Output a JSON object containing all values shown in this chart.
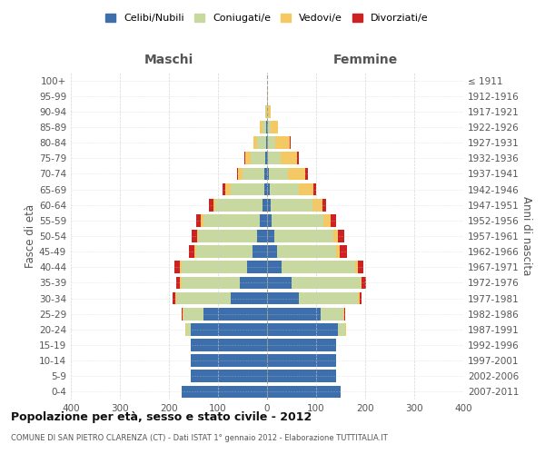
{
  "age_groups": [
    "0-4",
    "5-9",
    "10-14",
    "15-19",
    "20-24",
    "25-29",
    "30-34",
    "35-39",
    "40-44",
    "45-49",
    "50-54",
    "55-59",
    "60-64",
    "65-69",
    "70-74",
    "75-79",
    "80-84",
    "85-89",
    "90-94",
    "95-99",
    "100+"
  ],
  "birth_years": [
    "2007-2011",
    "2002-2006",
    "1997-2001",
    "1992-1996",
    "1987-1991",
    "1982-1986",
    "1977-1981",
    "1972-1976",
    "1967-1971",
    "1962-1966",
    "1957-1961",
    "1952-1956",
    "1947-1951",
    "1942-1946",
    "1937-1941",
    "1932-1936",
    "1927-1931",
    "1922-1926",
    "1917-1921",
    "1912-1916",
    "≤ 1911"
  ],
  "maschi": {
    "celibi": [
      175,
      155,
      155,
      155,
      155,
      130,
      75,
      55,
      40,
      30,
      20,
      15,
      10,
      5,
      5,
      3,
      2,
      2,
      0,
      0,
      0
    ],
    "coniugati": [
      0,
      0,
      0,
      0,
      10,
      40,
      110,
      120,
      135,
      115,
      120,
      115,
      95,
      70,
      45,
      30,
      18,
      8,
      2,
      0,
      0
    ],
    "vedovi": [
      0,
      0,
      0,
      0,
      2,
      2,
      2,
      2,
      3,
      3,
      3,
      5,
      5,
      10,
      10,
      12,
      8,
      5,
      2,
      0,
      0
    ],
    "divorziati": [
      0,
      0,
      0,
      0,
      0,
      2,
      5,
      8,
      10,
      12,
      10,
      10,
      8,
      5,
      2,
      2,
      0,
      0,
      0,
      0,
      0
    ]
  },
  "femmine": {
    "nubili": [
      150,
      140,
      140,
      140,
      145,
      110,
      65,
      50,
      30,
      20,
      15,
      10,
      8,
      5,
      3,
      2,
      2,
      2,
      0,
      0,
      0
    ],
    "coniugate": [
      0,
      0,
      0,
      0,
      15,
      45,
      120,
      140,
      150,
      120,
      120,
      105,
      85,
      60,
      40,
      25,
      15,
      5,
      2,
      0,
      0
    ],
    "vedove": [
      0,
      0,
      0,
      0,
      2,
      2,
      3,
      3,
      5,
      8,
      10,
      15,
      20,
      30,
      35,
      35,
      30,
      15,
      5,
      2,
      0
    ],
    "divorziate": [
      0,
      0,
      0,
      0,
      0,
      2,
      5,
      8,
      12,
      15,
      12,
      10,
      8,
      5,
      5,
      2,
      2,
      0,
      0,
      0,
      0
    ]
  },
  "colors": {
    "celibi": "#3d6fad",
    "coniugati": "#c8d9a0",
    "vedovi": "#f5c862",
    "divorziati": "#cc2222"
  },
  "xlim": 400,
  "title": "Popolazione per età, sesso e stato civile - 2012",
  "subtitle": "COMUNE DI SAN PIETRO CLARENZA (CT) - Dati ISTAT 1° gennaio 2012 - Elaborazione TUTTITALIA.IT",
  "ylabel_left": "Fasce di età",
  "ylabel_right": "Anni di nascita",
  "legend_labels": [
    "Celibi/Nubili",
    "Coniugati/e",
    "Vedovi/e",
    "Divorziati/e"
  ],
  "maschi_label": "Maschi",
  "femmine_label": "Femmine",
  "bg_color": "#ffffff",
  "grid_color": "#cccccc"
}
